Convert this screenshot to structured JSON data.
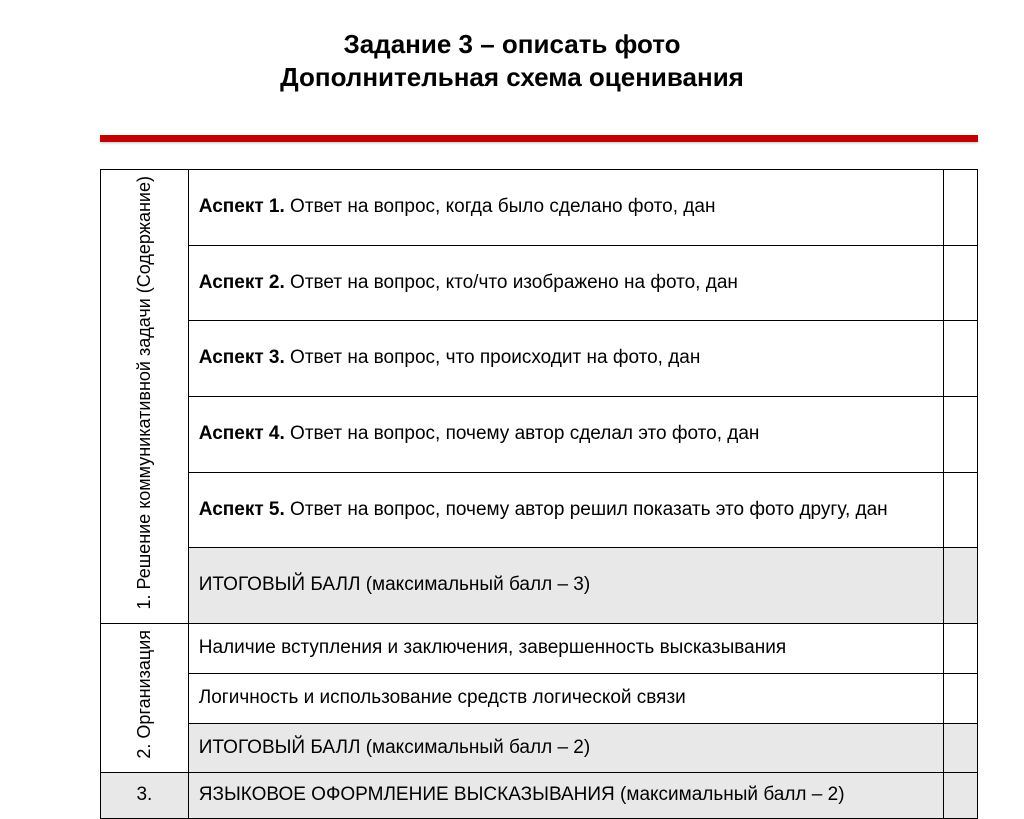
{
  "title": {
    "line1": "Задание 3 – описать фото",
    "line2": "Дополнительная схема оценивания"
  },
  "colors": {
    "rule": "#c10000",
    "grey_bg": "#e8e8e8",
    "border": "#000000",
    "text": "#000000",
    "page_bg": "#ffffff"
  },
  "section1": {
    "header": "1.    Решение коммуникативной задачи (Содержание)",
    "rows": [
      {
        "bold": "Аспект 1.",
        "text": " Ответ на вопрос, когда было сделано фото, дан"
      },
      {
        "bold": "Аспект 2.",
        "text": " Ответ на вопрос, кто/что изображено на фото, дан"
      },
      {
        "bold": "Аспект 3.",
        "text": " Ответ на вопрос, что происходит на фото, дан"
      },
      {
        "bold": "Аспект 4.",
        "text": " Ответ на вопрос, почему  автор сделал это фото, дан"
      },
      {
        "bold": "Аспект 5.",
        "text": " Ответ на вопрос, почему  автор решил показать это фото другу, дан"
      }
    ],
    "total": "ИТОГОВЫЙ БАЛЛ  (максимальный балл – 3)"
  },
  "section2": {
    "header": "2. Организация",
    "rows": [
      {
        "text": "Наличие вступления и заключения, завершенность высказывания"
      },
      {
        "text": "Логичность и использование средств логической связи"
      }
    ],
    "total": "ИТОГОВЫЙ БАЛЛ  (максимальный балл – 2)"
  },
  "section3": {
    "header": "3.",
    "text": "ЯЗЫКОВОЕ ОФОРМЛЕНИЕ ВЫСКАЗЫВАНИЯ (максимальный балл – 2)"
  },
  "typography": {
    "title_fontsize": 26,
    "body_fontsize": 19,
    "vert_fontsize": 18,
    "font_family": "Arial"
  }
}
